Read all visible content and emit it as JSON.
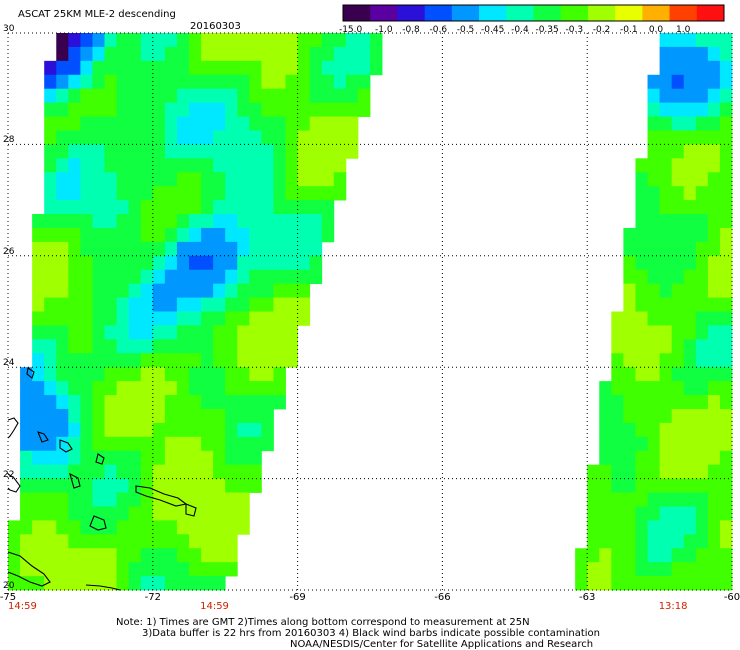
{
  "header": {
    "title": "ASCAT 25KM MLE-2 descending",
    "date": "20160303"
  },
  "colorbar": {
    "labels": [
      "-15.0",
      "-1.0",
      "-0.8",
      "-0.6",
      "-0.5",
      "-0.45",
      "-0.4",
      "-0.35",
      "-0.3",
      "-0.2",
      "-0.1",
      "0.0",
      "1.0"
    ],
    "colors": [
      "#3a0050",
      "#5a00a0",
      "#2a10d8",
      "#0050ff",
      "#0098ff",
      "#00e8ff",
      "#00ffb0",
      "#10ff40",
      "#40ff00",
      "#a0ff00",
      "#e8ff00",
      "#ffb000",
      "#ff4000",
      "#ff1010"
    ]
  },
  "chart_data": {
    "type": "heatmap",
    "title": "ASCAT 25KM MLE-2 descending",
    "date": "20160303",
    "x_ticks": [
      "-75",
      "-72",
      "-69",
      "-66",
      "-63",
      "-60"
    ],
    "y_ticks": [
      "30",
      "28",
      "26",
      "24",
      "22",
      "20"
    ],
    "xlim": [
      -75,
      -60
    ],
    "ylim": [
      20,
      30
    ],
    "grid": true,
    "swath_times": [
      {
        "label": "14:59",
        "lon": -75
      },
      {
        "label": "14:59",
        "lon": -70.75
      },
      {
        "label": "13:18",
        "lon": -61.25
      }
    ],
    "swaths": [
      {
        "lat_top": 30,
        "lon_left_top": -74.1,
        "lon_right_top": -67.2,
        "lat_bottom": 20,
        "lon_left_bottom": -75,
        "lon_right_bottom": -70.5
      },
      {
        "lat_top": 30,
        "lon_left_top": -61.5,
        "lon_right_top": -60,
        "lat_bottom": 20,
        "lon_left_bottom": -63.3,
        "lon_right_bottom": -60
      }
    ],
    "colorscale_breaks": [
      -15.0,
      -1.0,
      -0.8,
      -0.6,
      -0.5,
      -0.45,
      -0.4,
      -0.35,
      -0.3,
      -0.2,
      -0.1,
      0.0,
      1.0
    ],
    "minima": [
      {
        "lon": -70.9,
        "lat": 25.9,
        "value": -0.6
      },
      {
        "lon": -74.5,
        "lat": 23.0,
        "value": -0.6
      },
      {
        "lon": -61.2,
        "lat": 29.1,
        "value": -0.6
      },
      {
        "lon": -74.1,
        "lat": 29.9,
        "value": -15.0
      }
    ]
  },
  "footer": {
    "note1": "Note: 1) Times are GMT 2)Times along bottom correspond to measurement at 25N",
    "note2": "3)Data buffer is 22 hrs from 20160303 4) Black wind barbs indicate possible contamination",
    "note3": "NOAA/NESDIS/Center for Satellite Applications and Research"
  }
}
